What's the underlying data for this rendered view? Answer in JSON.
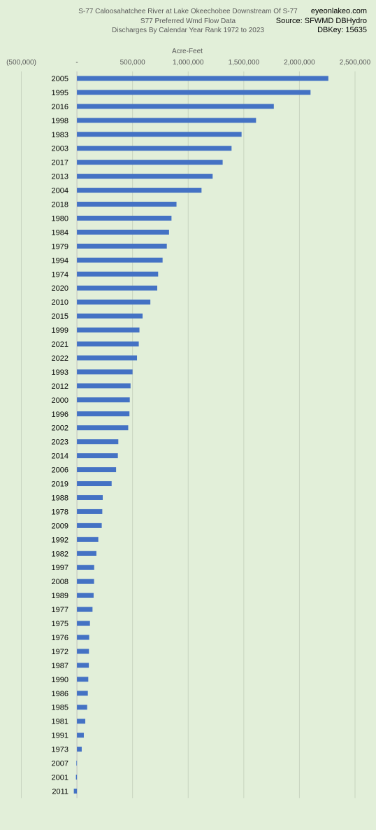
{
  "chart_data": {
    "type": "bar",
    "orientation": "horizontal",
    "title": [
      "S-77 Caloosahatchee River at Lake Okeechobee Downstream Of S-77",
      "S77 Preferred Wmd Flow Data",
      "Discharges By Calendar Year Rank 1972 to 2023"
    ],
    "source": [
      "eyeonlakeo.com",
      "Source: SFWMD DBHydro",
      "DBKey: 15635"
    ],
    "xlabel": "Acre-Feet",
    "xlim": [
      -500000,
      2500000
    ],
    "xticks": [
      -500000,
      0,
      500000,
      1000000,
      1500000,
      2000000,
      2500000
    ],
    "xtick_labels": [
      "(500,000)",
      "-",
      "500,000",
      "1,000,000",
      "1,500,000",
      "2,000,000",
      "2,500,000"
    ],
    "axis_position": "top",
    "grid": "vertical",
    "bar_color": "#4472c4",
    "categories": [
      "2005",
      "1995",
      "2016",
      "1998",
      "1983",
      "2003",
      "2017",
      "2013",
      "2004",
      "2018",
      "1980",
      "1984",
      "1979",
      "1994",
      "1974",
      "2020",
      "2010",
      "2015",
      "1999",
      "2021",
      "2022",
      "1993",
      "2012",
      "2000",
      "1996",
      "2002",
      "2023",
      "2014",
      "2006",
      "2019",
      "1988",
      "1978",
      "2009",
      "1992",
      "1982",
      "1997",
      "2008",
      "1989",
      "1977",
      "1975",
      "1976",
      "1972",
      "1987",
      "1990",
      "1986",
      "1985",
      "1981",
      "1991",
      "1973",
      "2007",
      "2001",
      "2011"
    ],
    "values": [
      2260000,
      2100000,
      1770000,
      1610000,
      1480000,
      1390000,
      1310000,
      1220000,
      1120000,
      895000,
      850000,
      828000,
      808000,
      770000,
      730000,
      722000,
      660000,
      590000,
      562000,
      556000,
      540000,
      500000,
      482000,
      475000,
      472000,
      461000,
      372000,
      368000,
      352000,
      312000,
      232000,
      228000,
      223000,
      192000,
      175000,
      155000,
      154000,
      150000,
      140000,
      117000,
      110000,
      108000,
      107000,
      102000,
      98000,
      92000,
      75000,
      62000,
      43000,
      -5000,
      -9000,
      -28000
    ]
  }
}
